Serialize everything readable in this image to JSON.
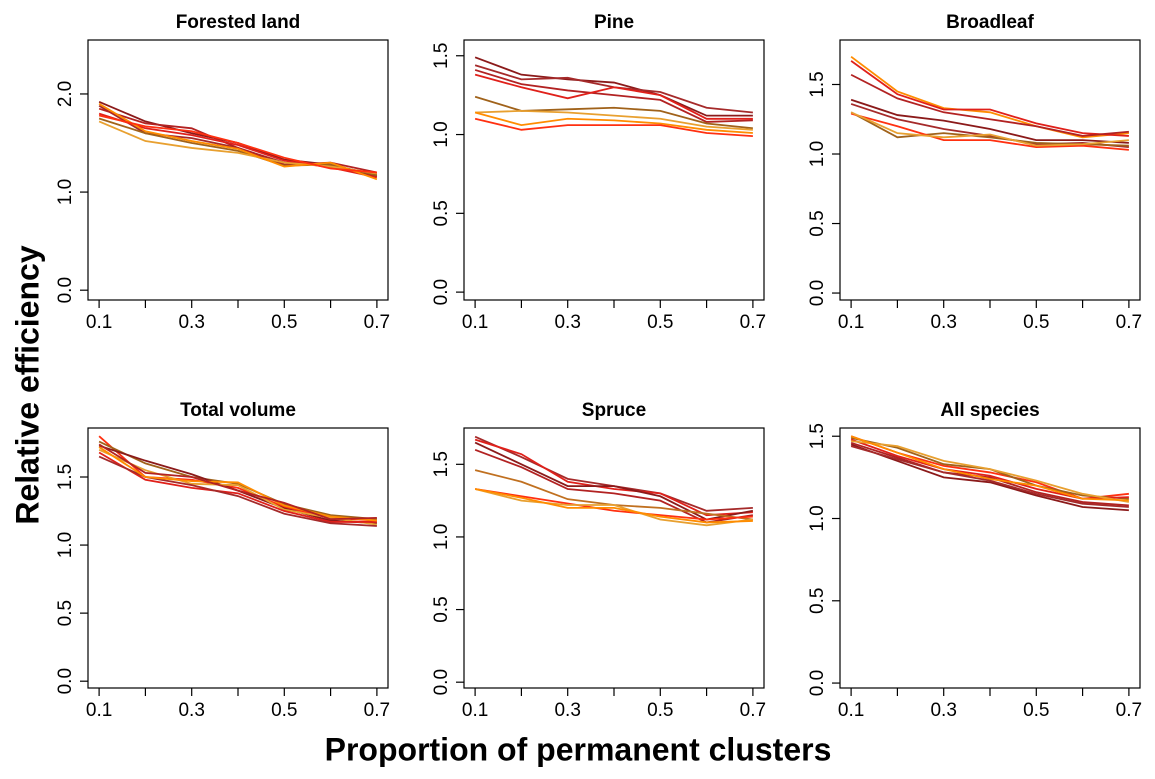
{
  "xlabel": "Proportion of permanent clusters",
  "ylabel": "Relative efficiency",
  "chart_data": [
    {
      "type": "line",
      "title": "Forested land",
      "x": [
        0.1,
        0.2,
        0.3,
        0.4,
        0.5,
        0.6,
        0.7
      ],
      "xlim": [
        0.076,
        0.724
      ],
      "xticks": [
        0.1,
        0.3,
        0.5,
        0.7
      ],
      "xminorticks": [
        0.2,
        0.4,
        0.6
      ],
      "ylim": [
        -0.1,
        2.55
      ],
      "yticks": [
        {
          "value": 0,
          "label": "0.0"
        },
        {
          "value": 1,
          "label": "1.0"
        },
        {
          "value": 2,
          "label": "2.0"
        }
      ],
      "series": [
        {
          "color": "#8b1a1a",
          "values": [
            1.92,
            1.72,
            1.6,
            1.5,
            1.33,
            1.28,
            1.16
          ]
        },
        {
          "color": "#a52a2a",
          "values": [
            1.88,
            1.6,
            1.55,
            1.45,
            1.3,
            1.27,
            1.18
          ]
        },
        {
          "color": "#b22222",
          "values": [
            1.85,
            1.7,
            1.65,
            1.45,
            1.28,
            1.3,
            1.2
          ]
        },
        {
          "color": "#e0201a",
          "values": [
            1.8,
            1.65,
            1.58,
            1.48,
            1.32,
            1.25,
            1.15
          ]
        },
        {
          "color": "#a0621a",
          "values": [
            1.75,
            1.6,
            1.5,
            1.42,
            1.27,
            1.28,
            1.17
          ]
        },
        {
          "color": "#e8a030",
          "values": [
            1.72,
            1.52,
            1.45,
            1.4,
            1.3,
            1.26,
            1.19
          ]
        },
        {
          "color": "#ff8c00",
          "values": [
            1.9,
            1.62,
            1.52,
            1.44,
            1.26,
            1.3,
            1.13
          ]
        },
        {
          "color": "#ff3010",
          "values": [
            1.78,
            1.67,
            1.62,
            1.5,
            1.35,
            1.24,
            1.2
          ]
        }
      ]
    },
    {
      "type": "line",
      "title": "Pine",
      "x": [
        0.1,
        0.2,
        0.3,
        0.4,
        0.5,
        0.6,
        0.7
      ],
      "xlim": [
        0.076,
        0.724
      ],
      "xticks": [
        0.1,
        0.3,
        0.5,
        0.7
      ],
      "xminorticks": [
        0.2,
        0.4,
        0.6
      ],
      "ylim": [
        -0.05,
        1.6
      ],
      "yticks": [
        {
          "value": 0,
          "label": "0.0"
        },
        0.5,
        {
          "value": 1,
          "label": "1.0"
        },
        1.5
      ],
      "series": [
        {
          "color": "#8b1a1a",
          "values": [
            1.49,
            1.38,
            1.35,
            1.33,
            1.25,
            1.12,
            1.12
          ]
        },
        {
          "color": "#a52a2a",
          "values": [
            1.44,
            1.35,
            1.36,
            1.3,
            1.27,
            1.17,
            1.14
          ]
        },
        {
          "color": "#b22222",
          "values": [
            1.41,
            1.32,
            1.28,
            1.25,
            1.22,
            1.08,
            1.09
          ]
        },
        {
          "color": "#e0201a",
          "values": [
            1.38,
            1.3,
            1.23,
            1.3,
            1.25,
            1.1,
            1.1
          ]
        },
        {
          "color": "#a0621a",
          "values": [
            1.24,
            1.15,
            1.16,
            1.17,
            1.15,
            1.07,
            1.04
          ]
        },
        {
          "color": "#e8a030",
          "values": [
            1.14,
            1.15,
            1.14,
            1.12,
            1.1,
            1.05,
            1.03
          ]
        },
        {
          "color": "#ff8c00",
          "values": [
            1.14,
            1.06,
            1.1,
            1.09,
            1.07,
            1.03,
            1.01
          ]
        },
        {
          "color": "#ff3010",
          "values": [
            1.1,
            1.03,
            1.06,
            1.06,
            1.06,
            1.01,
            0.99
          ]
        }
      ]
    },
    {
      "type": "line",
      "title": "Broadleaf",
      "x": [
        0.1,
        0.2,
        0.3,
        0.4,
        0.5,
        0.6,
        0.7
      ],
      "xlim": [
        0.076,
        0.724
      ],
      "xticks": [
        0.1,
        0.3,
        0.5,
        0.7
      ],
      "xminorticks": [
        0.2,
        0.4,
        0.6
      ],
      "ylim": [
        -0.05,
        1.82
      ],
      "yticks": [
        {
          "value": 0,
          "label": "0.0"
        },
        0.5,
        {
          "value": 1,
          "label": "1.0"
        },
        1.5
      ],
      "series": [
        {
          "color": "#ff8c00",
          "values": [
            1.7,
            1.45,
            1.33,
            1.3,
            1.2,
            1.12,
            1.15
          ]
        },
        {
          "color": "#e0201a",
          "values": [
            1.67,
            1.43,
            1.32,
            1.32,
            1.22,
            1.15,
            1.13
          ]
        },
        {
          "color": "#b22222",
          "values": [
            1.57,
            1.4,
            1.3,
            1.25,
            1.2,
            1.13,
            1.16
          ]
        },
        {
          "color": "#8b1a1a",
          "values": [
            1.39,
            1.28,
            1.24,
            1.18,
            1.1,
            1.1,
            1.08
          ]
        },
        {
          "color": "#a52a2a",
          "values": [
            1.36,
            1.25,
            1.18,
            1.13,
            1.07,
            1.08,
            1.05
          ]
        },
        {
          "color": "#a0621a",
          "values": [
            1.3,
            1.12,
            1.15,
            1.12,
            1.08,
            1.07,
            1.06
          ]
        },
        {
          "color": "#ff3010",
          "values": [
            1.29,
            1.2,
            1.1,
            1.1,
            1.05,
            1.06,
            1.03
          ]
        },
        {
          "color": "#e8a030",
          "values": [
            1.3,
            1.15,
            1.12,
            1.14,
            1.06,
            1.07,
            1.1
          ]
        }
      ]
    },
    {
      "type": "line",
      "title": "Total volume",
      "x": [
        0.1,
        0.2,
        0.3,
        0.4,
        0.5,
        0.6,
        0.7
      ],
      "xlim": [
        0.076,
        0.724
      ],
      "xticks": [
        0.1,
        0.3,
        0.5,
        0.7
      ],
      "xminorticks": [
        0.2,
        0.4,
        0.6
      ],
      "ylim": [
        -0.05,
        1.86
      ],
      "yticks": [
        {
          "value": 0,
          "label": "0.0"
        },
        0.5,
        {
          "value": 1,
          "label": "1.0"
        },
        1.5
      ],
      "series": [
        {
          "color": "#ff3010",
          "values": [
            1.8,
            1.5,
            1.48,
            1.42,
            1.28,
            1.2,
            1.18
          ]
        },
        {
          "color": "#a0621a",
          "values": [
            1.76,
            1.6,
            1.5,
            1.45,
            1.3,
            1.22,
            1.19
          ]
        },
        {
          "color": "#8b1a1a",
          "values": [
            1.73,
            1.62,
            1.52,
            1.4,
            1.27,
            1.18,
            1.16
          ]
        },
        {
          "color": "#e8a030",
          "values": [
            1.7,
            1.55,
            1.45,
            1.44,
            1.26,
            1.2,
            1.15
          ]
        },
        {
          "color": "#e0201a",
          "values": [
            1.68,
            1.48,
            1.42,
            1.38,
            1.25,
            1.17,
            1.17
          ]
        },
        {
          "color": "#a52a2a",
          "values": [
            1.65,
            1.5,
            1.44,
            1.36,
            1.23,
            1.16,
            1.14
          ]
        },
        {
          "color": "#ff8c00",
          "values": [
            1.72,
            1.5,
            1.47,
            1.46,
            1.29,
            1.21,
            1.18
          ]
        },
        {
          "color": "#b22222",
          "values": [
            1.74,
            1.53,
            1.5,
            1.4,
            1.31,
            1.19,
            1.2
          ]
        }
      ]
    },
    {
      "type": "line",
      "title": "Spruce",
      "x": [
        0.1,
        0.2,
        0.3,
        0.4,
        0.5,
        0.6,
        0.7
      ],
      "xlim": [
        0.076,
        0.724
      ],
      "xticks": [
        0.1,
        0.3,
        0.5,
        0.7
      ],
      "xminorticks": [
        0.2,
        0.4,
        0.6
      ],
      "ylim": [
        -0.04,
        1.75
      ],
      "yticks": [
        {
          "value": 0,
          "label": "0.0"
        },
        0.5,
        {
          "value": 1,
          "label": "1.0"
        },
        1.5
      ],
      "series": [
        {
          "color": "#a52a2a",
          "values": [
            1.69,
            1.55,
            1.4,
            1.35,
            1.3,
            1.18,
            1.2
          ]
        },
        {
          "color": "#e0201a",
          "values": [
            1.67,
            1.57,
            1.38,
            1.33,
            1.3,
            1.15,
            1.17
          ]
        },
        {
          "color": "#8b1a1a",
          "values": [
            1.65,
            1.5,
            1.35,
            1.35,
            1.28,
            1.12,
            1.18
          ]
        },
        {
          "color": "#b22222",
          "values": [
            1.6,
            1.48,
            1.33,
            1.3,
            1.25,
            1.1,
            1.15
          ]
        },
        {
          "color": "#c07020",
          "values": [
            1.46,
            1.38,
            1.26,
            1.22,
            1.2,
            1.16,
            1.12
          ]
        },
        {
          "color": "#ff3010",
          "values": [
            1.33,
            1.28,
            1.23,
            1.18,
            1.15,
            1.12,
            1.14
          ]
        },
        {
          "color": "#e8a030",
          "values": [
            1.33,
            1.25,
            1.22,
            1.22,
            1.12,
            1.08,
            1.12
          ]
        },
        {
          "color": "#ff8c00",
          "values": [
            1.33,
            1.27,
            1.2,
            1.2,
            1.14,
            1.1,
            1.11
          ]
        }
      ]
    },
    {
      "type": "line",
      "title": "All species",
      "x": [
        0.1,
        0.2,
        0.3,
        0.4,
        0.5,
        0.6,
        0.7
      ],
      "xlim": [
        0.076,
        0.724
      ],
      "xticks": [
        0.1,
        0.3,
        0.5,
        0.7
      ],
      "xminorticks": [
        0.2,
        0.4,
        0.6
      ],
      "ylim": [
        -0.03,
        1.55
      ],
      "yticks": [
        {
          "value": 0,
          "label": "0.0"
        },
        0.5,
        {
          "value": 1,
          "label": "1.0"
        },
        1.5
      ],
      "series": [
        {
          "color": "#ff3010",
          "values": [
            1.5,
            1.4,
            1.32,
            1.28,
            1.22,
            1.12,
            1.15
          ]
        },
        {
          "color": "#a0621a",
          "values": [
            1.49,
            1.43,
            1.33,
            1.3,
            1.2,
            1.14,
            1.12
          ]
        },
        {
          "color": "#e0201a",
          "values": [
            1.48,
            1.38,
            1.3,
            1.26,
            1.18,
            1.12,
            1.13
          ]
        },
        {
          "color": "#e8a030",
          "values": [
            1.47,
            1.44,
            1.35,
            1.3,
            1.23,
            1.15,
            1.1
          ]
        },
        {
          "color": "#b22222",
          "values": [
            1.46,
            1.37,
            1.28,
            1.25,
            1.16,
            1.1,
            1.08
          ]
        },
        {
          "color": "#8b1a1a",
          "values": [
            1.45,
            1.35,
            1.25,
            1.22,
            1.14,
            1.07,
            1.05
          ]
        },
        {
          "color": "#ff8c00",
          "values": [
            1.5,
            1.4,
            1.3,
            1.24,
            1.2,
            1.12,
            1.11
          ]
        },
        {
          "color": "#a52a2a",
          "values": [
            1.44,
            1.36,
            1.28,
            1.23,
            1.15,
            1.09,
            1.07
          ]
        }
      ]
    }
  ]
}
